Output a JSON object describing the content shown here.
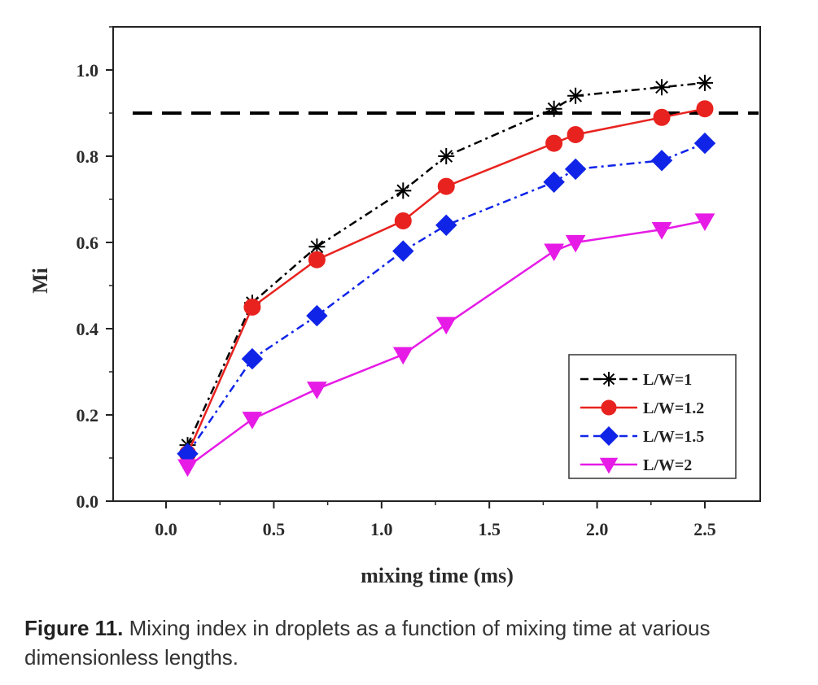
{
  "chart_data": {
    "type": "line",
    "title": "",
    "xlabel": "mixing time (ms)",
    "ylabel": "Mi",
    "xlim": [
      -0.25,
      2.8
    ],
    "ylim": [
      0.0,
      1.1
    ],
    "xticks": [
      0.0,
      0.5,
      1.0,
      1.5,
      2.0,
      2.5
    ],
    "xtick_labels": [
      "0.0",
      "0.5",
      "1.0",
      "1.5",
      "2.0",
      "2.5"
    ],
    "yticks": [
      0.0,
      0.2,
      0.4,
      0.6,
      0.8,
      1.0
    ],
    "ytick_labels": [
      "0.0",
      "0.2",
      "0.4",
      "0.6",
      "0.8",
      "1.0"
    ],
    "grid": false,
    "legend_position": "bottom-right",
    "threshold_line": 0.9,
    "x": [
      0.1,
      0.4,
      0.7,
      1.1,
      1.3,
      1.8,
      1.9,
      2.3,
      2.5
    ],
    "series": [
      {
        "name": "L/W=1",
        "color": "#000000",
        "marker": "asterisk",
        "dash": "dash-dot",
        "values": [
          0.13,
          0.46,
          0.59,
          0.72,
          0.8,
          0.91,
          0.94,
          0.96,
          0.97
        ]
      },
      {
        "name": "L/W=1.2",
        "color": "#e8231f",
        "marker": "circle",
        "dash": "solid",
        "values": [
          0.11,
          0.45,
          0.56,
          0.65,
          0.73,
          0.83,
          0.85,
          0.89,
          0.91
        ]
      },
      {
        "name": "L/W=1.5",
        "color": "#1024e8",
        "marker": "diamond",
        "dash": "dash-dot",
        "values": [
          0.11,
          0.33,
          0.43,
          0.58,
          0.64,
          0.74,
          0.77,
          0.79,
          0.83
        ]
      },
      {
        "name": "L/W=2",
        "color": "#e61be6",
        "marker": "triangle-down",
        "dash": "solid",
        "values": [
          0.08,
          0.19,
          0.26,
          0.34,
          0.41,
          0.58,
          0.6,
          0.63,
          0.65
        ]
      }
    ]
  },
  "caption": {
    "label": "Figure 11.",
    "text": "Mixing index in droplets as a function of mixing time at various dimensionless lengths."
  }
}
